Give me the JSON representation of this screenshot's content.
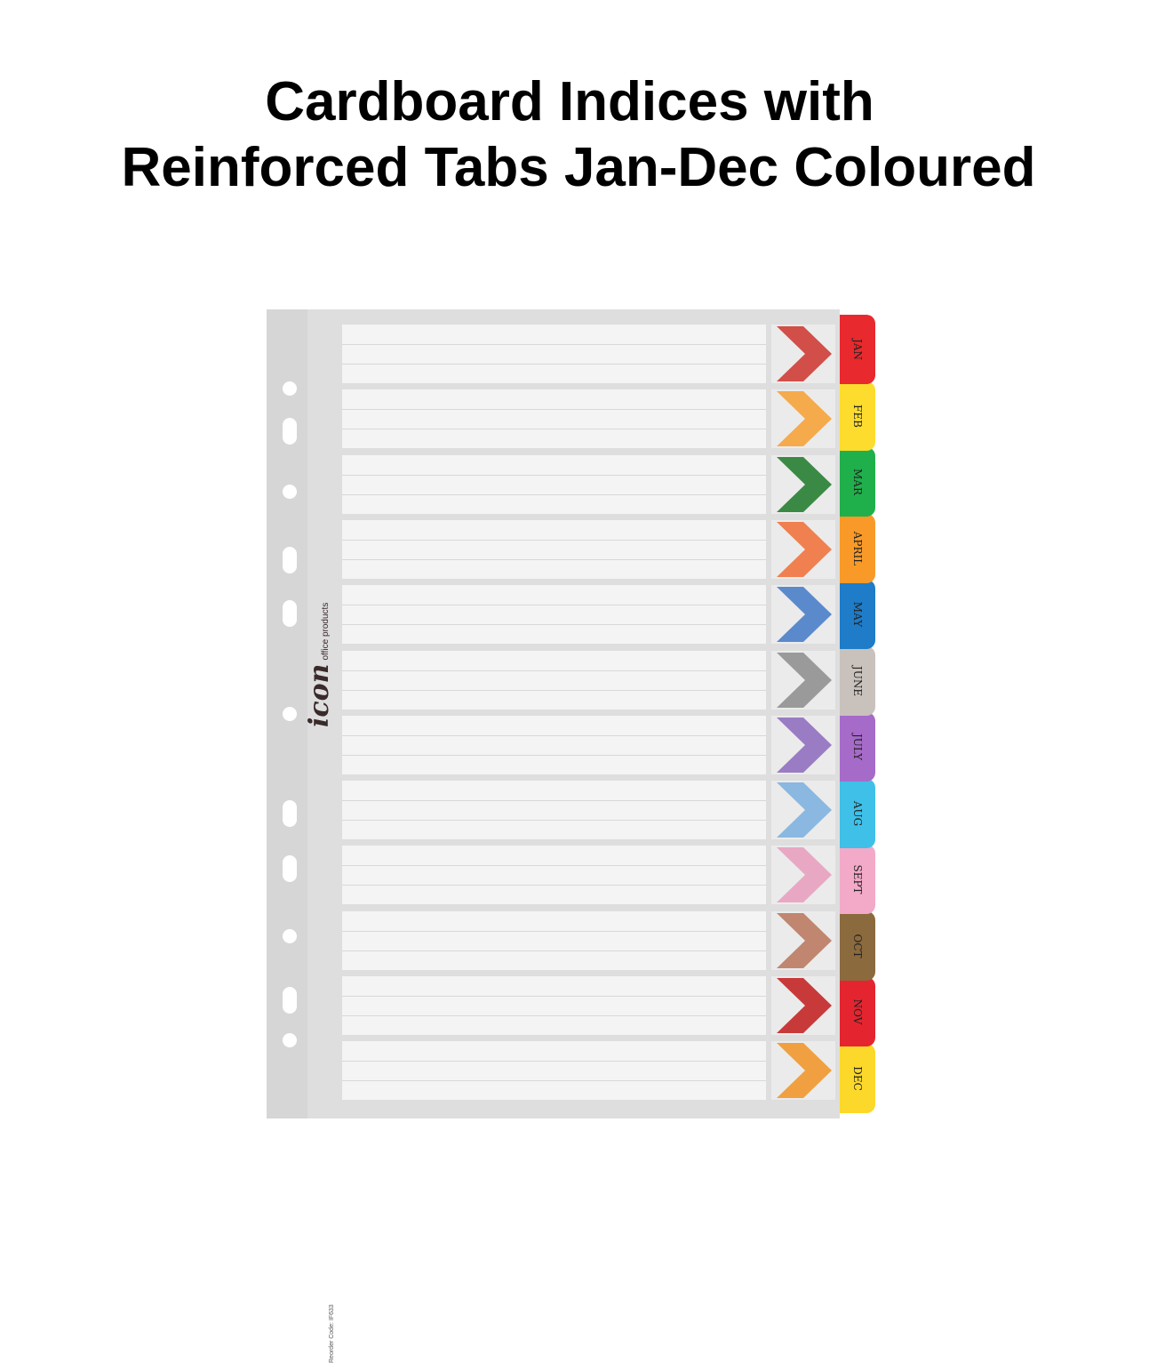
{
  "title": {
    "line1": "Cardboard Indices with",
    "line2": "Reinforced Tabs Jan-Dec Coloured"
  },
  "sheet": {
    "brand": "icon",
    "brand_sub": "office products",
    "reorder_code": "Reorder Code: IF633"
  },
  "tabs": [
    {
      "label": "JAN",
      "tab_color": "#e8292d",
      "chevron_color": "#d24e48"
    },
    {
      "label": "FEB",
      "tab_color": "#fddc2e",
      "chevron_color": "#f5aa4c"
    },
    {
      "label": "MAR",
      "tab_color": "#1fb04b",
      "chevron_color": "#3a8a45"
    },
    {
      "label": "APRIL",
      "tab_color": "#f99a28",
      "chevron_color": "#f08050"
    },
    {
      "label": "MAY",
      "tab_color": "#1e7cc8",
      "chevron_color": "#5a8acc"
    },
    {
      "label": "JUNE",
      "tab_color": "#c9c2bc",
      "chevron_color": "#9a9a9a"
    },
    {
      "label": "JULY",
      "tab_color": "#a66bc9",
      "chevron_color": "#9a7cc4"
    },
    {
      "label": "AUG",
      "tab_color": "#3fc0e8",
      "chevron_color": "#8ab8e0"
    },
    {
      "label": "SEPT",
      "tab_color": "#f3a9c8",
      "chevron_color": "#e8a8c4"
    },
    {
      "label": "OCT",
      "tab_color": "#8b6a3e",
      "chevron_color": "#c08670"
    },
    {
      "label": "NOV",
      "tab_color": "#e42530",
      "chevron_color": "#c83a3a"
    },
    {
      "label": "DEC",
      "tab_color": "#fbd82a",
      "chevron_color": "#f0a040"
    }
  ]
}
